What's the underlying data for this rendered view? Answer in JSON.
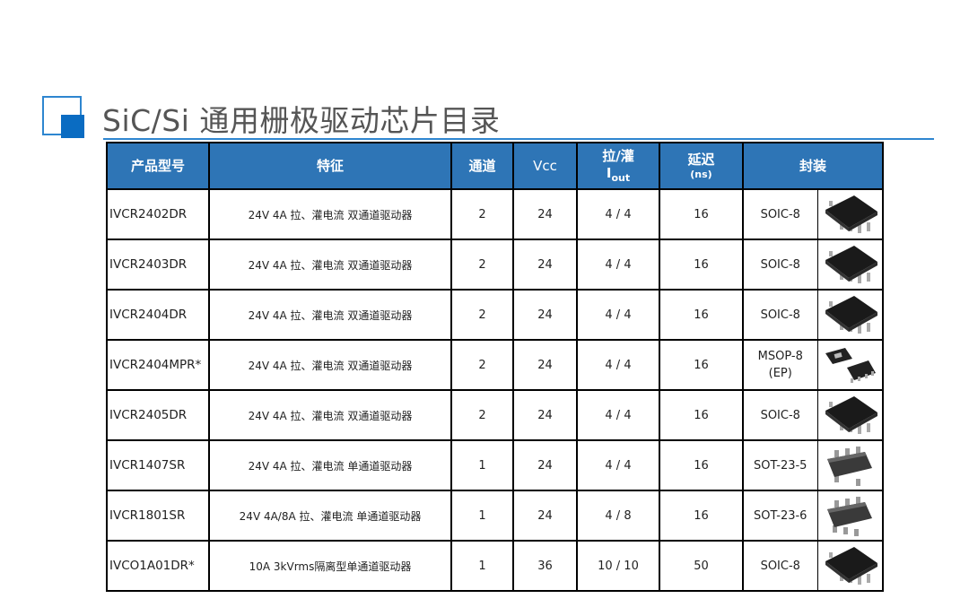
{
  "title": "SiC/Si 通用栅极驱动芯片目录",
  "colors": {
    "header_bg": "#2E75B6",
    "accent": "#0A6CC2"
  },
  "headers": {
    "model": "产品型号",
    "feature": "特征",
    "channels": "通道",
    "vcc": "Vcc",
    "iout_top": "拉/灌",
    "iout_main": "I",
    "iout_sub": "out",
    "delay_top": "延迟",
    "delay_sub": "(ns)",
    "package": "封装"
  },
  "rows": [
    {
      "model": "IVCR2402DR",
      "feature": "24V 4A 拉、灌电流 双通道驱动器",
      "channels": "2",
      "vcc": "24",
      "iout": "4 / 4",
      "delay": "16",
      "package": "SOIC-8",
      "package2": "",
      "icon": "soic-8-chip-icon"
    },
    {
      "model": "IVCR2403DR",
      "feature": "24V 4A 拉、灌电流 双通道驱动器",
      "channels": "2",
      "vcc": "24",
      "iout": "4 / 4",
      "delay": "16",
      "package": "SOIC-8",
      "package2": "",
      "icon": "soic-8-chip-icon"
    },
    {
      "model": "IVCR2404DR",
      "feature": "24V 4A 拉、灌电流 双通道驱动器",
      "channels": "2",
      "vcc": "24",
      "iout": "4 / 4",
      "delay": "16",
      "package": "SOIC-8",
      "package2": "",
      "icon": "soic-8-chip-icon"
    },
    {
      "model": "IVCR2404MPR*",
      "feature": "24V 4A 拉、灌电流 双通道驱动器",
      "channels": "2",
      "vcc": "24",
      "iout": "4 / 4",
      "delay": "16",
      "package": "MSOP-8",
      "package2": "(EP)",
      "icon": "msop-8-chip-icon"
    },
    {
      "model": "IVCR2405DR",
      "feature": "24V 4A 拉、灌电流 双通道驱动器",
      "channels": "2",
      "vcc": "24",
      "iout": "4 / 4",
      "delay": "16",
      "package": "SOIC-8",
      "package2": "",
      "icon": "soic-8-chip-icon"
    },
    {
      "model": "IVCR1407SR",
      "feature": "24V 4A  拉、灌电流 单通道驱动器",
      "channels": "1",
      "vcc": "24",
      "iout": "4 / 4",
      "delay": "16",
      "package": "SOT-23-5",
      "package2": "",
      "icon": "sot-23-5-chip-icon"
    },
    {
      "model": "IVCR1801SR",
      "feature": "24V 4A/8A 拉、灌电流 单通道驱动器",
      "channels": "1",
      "vcc": "24",
      "iout": "4 / 8",
      "delay": "16",
      "package": "SOT-23-6",
      "package2": "",
      "icon": "sot-23-6-chip-icon"
    },
    {
      "model": "IVCO1A01DR*",
      "feature": "10A 3kVrms隔离型单通道驱动器",
      "channels": "1",
      "vcc": "36",
      "iout": "10 / 10",
      "delay": "50",
      "package": "SOIC-8",
      "package2": "",
      "icon": "soic-8-chip-icon"
    }
  ]
}
